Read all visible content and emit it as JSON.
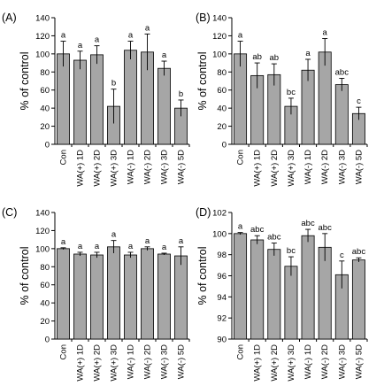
{
  "chart_data": [
    {
      "type": "bar",
      "panel_label": "(A)",
      "ylabel": "% of control",
      "ylim": [
        0,
        140
      ],
      "yticks": [
        0,
        20,
        40,
        60,
        80,
        100,
        120,
        140
      ],
      "categories": [
        "Con",
        "WA(+) 1D",
        "WA(+) 2D",
        "WA(+) 3D",
        "WA(-) 1D",
        "WA(-) 2D",
        "WA(-) 3D",
        "WA(-) 5D"
      ],
      "values": [
        100,
        93,
        99,
        42,
        104,
        102,
        84,
        40
      ],
      "errors": [
        14,
        10,
        10,
        19,
        10,
        20,
        8,
        9
      ],
      "significance": [
        "a",
        "a",
        "a",
        "b",
        "a",
        "a",
        "a",
        "b"
      ],
      "bar_color": "#a6a6a6",
      "grid": false
    },
    {
      "type": "bar",
      "panel_label": "(B)",
      "ylabel": "% of control",
      "ylim": [
        0,
        140
      ],
      "yticks": [
        0,
        20,
        40,
        60,
        80,
        100,
        120,
        140
      ],
      "categories": [
        "Con",
        "WA(+) 1D",
        "WA(+) 2D",
        "WA(+) 3D",
        "WA(-) 1D",
        "WA(-) 2D",
        "WA(-) 3D",
        "WA(-) 5D"
      ],
      "values": [
        100,
        76,
        77,
        42,
        82,
        102,
        66,
        34
      ],
      "errors": [
        14,
        14,
        12,
        9,
        12,
        15,
        7,
        7
      ],
      "significance": [
        "a",
        "ab",
        "ab",
        "bc",
        "a",
        "a",
        "abc",
        "c"
      ],
      "bar_color": "#a6a6a6",
      "grid": false
    },
    {
      "type": "bar",
      "panel_label": "(C)",
      "ylabel": "% of control",
      "ylim": [
        0,
        140
      ],
      "yticks": [
        0,
        20,
        40,
        60,
        80,
        100,
        120,
        140
      ],
      "categories": [
        "Con",
        "WA(+) 1D",
        "WA(+) 2D",
        "WA(+) 3D",
        "WA(-) 1D",
        "WA(-) 2D",
        "WA(-) 3D",
        "WA(-) 5D"
      ],
      "values": [
        100,
        94,
        93,
        102,
        93,
        100,
        94,
        92
      ],
      "errors": [
        1,
        2,
        3,
        7,
        3,
        2,
        1,
        10
      ],
      "significance": [
        "a",
        "a",
        "a",
        "a",
        "a",
        "a",
        "a",
        "a"
      ],
      "bar_color": "#a6a6a6",
      "grid": false
    },
    {
      "type": "bar",
      "panel_label": "(D)",
      "ylabel": "% of control",
      "ylim": [
        90,
        102
      ],
      "yticks": [
        90,
        92,
        94,
        96,
        98,
        100,
        102
      ],
      "categories": [
        "Con",
        "WA(+) 1D",
        "WA(+) 2D",
        "WA(+) 3D",
        "WA(-) 1D",
        "WA(-) 2D",
        "WA(-) 3D",
        "WA(-) 5D"
      ],
      "values": [
        100,
        99.4,
        98.5,
        96.9,
        99.8,
        98.7,
        96.1,
        97.5
      ],
      "errors": [
        0.1,
        0.4,
        0.6,
        0.9,
        0.6,
        1.3,
        1.3,
        0.2
      ],
      "significance": [
        "a",
        "abc",
        "abc",
        "bc",
        "abc",
        "abc",
        "c",
        "abc"
      ],
      "bar_color": "#a6a6a6",
      "grid": false
    }
  ]
}
